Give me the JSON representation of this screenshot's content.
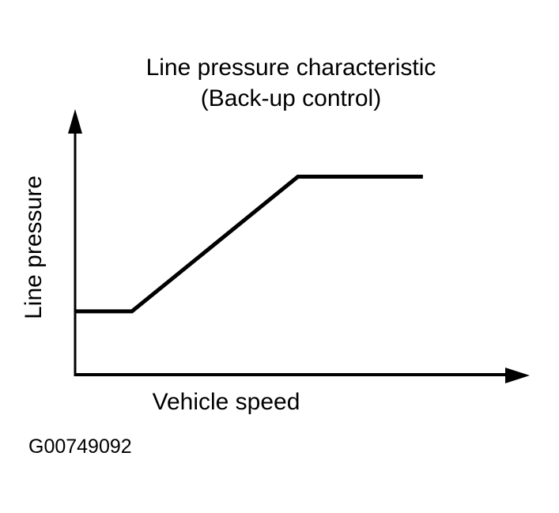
{
  "page": {
    "background": "#ffffff",
    "ink_color": "#000000"
  },
  "figure": {
    "title_line1": "Line pressure characteristic",
    "title_line2": "(Back-up control)",
    "y_axis_label": "Line pressure",
    "x_axis_label": "Vehicle speed",
    "figure_id": "G00749092"
  },
  "chart_data": {
    "type": "line",
    "title": "Line pressure characteristic (Back-up control)",
    "xlabel": "Vehicle speed",
    "ylabel": "Line pressure",
    "x_ticks": [],
    "y_ticks": [],
    "grid": false,
    "legend": "none",
    "axes": "arrow-terminated, unlabeled qualitative axes",
    "series": [
      {
        "name": "Line pressure vs. vehicle speed (back-up control)",
        "color": "#000000",
        "points_norm": [
          [
            0.0,
            0.24
          ],
          [
            0.125,
            0.24
          ],
          [
            0.49,
            0.75
          ],
          [
            0.765,
            0.75
          ]
        ],
        "shape": "constant at low speed, linear rise with speed, saturates constant at high speed"
      }
    ]
  }
}
